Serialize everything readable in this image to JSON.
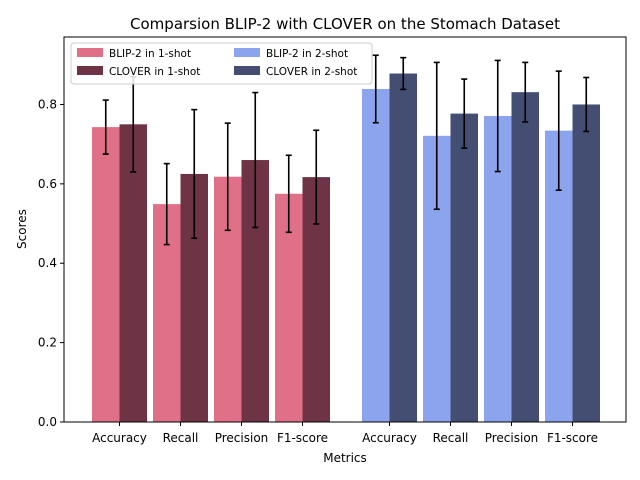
{
  "chart_data": {
    "type": "bar",
    "title": "Comparsion BLIP-2 with CLOVER on the Stomach Dataset",
    "xlabel": "Metrics",
    "ylabel": "Scores",
    "ylim": [
      0,
      0.97
    ],
    "yticks": [
      0.0,
      0.2,
      0.4,
      0.6,
      0.8
    ],
    "ytick_labels": [
      "0.0",
      "0.2",
      "0.4",
      "0.6",
      "0.8"
    ],
    "grid": false,
    "legend_position": "top-left",
    "groups": [
      {
        "name": "1-shot",
        "categories": [
          "Accuracy",
          "Recall",
          "Precision",
          "F1-score"
        ],
        "series": [
          {
            "name": "BLIP-2 in 1-shot",
            "color": "#e07087",
            "values": [
              0.743,
              0.549,
              0.618,
              0.575
            ],
            "errors": [
              0.068,
              0.102,
              0.135,
              0.097
            ]
          },
          {
            "name": "CLOVER in 1-shot",
            "color": "#6e3446",
            "values": [
              0.75,
              0.625,
              0.66,
              0.617
            ],
            "errors": [
              0.12,
              0.162,
              0.17,
              0.118
            ]
          }
        ]
      },
      {
        "name": "2-shot",
        "categories": [
          "Accuracy",
          "Recall",
          "Precision",
          "F1-score"
        ],
        "series": [
          {
            "name": "BLIP-2 in 2-shot",
            "color": "#8ca3ed",
            "values": [
              0.839,
              0.721,
              0.771,
              0.734
            ],
            "errors": [
              0.085,
              0.185,
              0.14,
              0.15
            ]
          },
          {
            "name": "CLOVER in 2-shot",
            "color": "#444e72",
            "values": [
              0.878,
              0.777,
              0.831,
              0.8
            ],
            "errors": [
              0.04,
              0.087,
              0.075,
              0.068
            ]
          }
        ]
      }
    ]
  }
}
